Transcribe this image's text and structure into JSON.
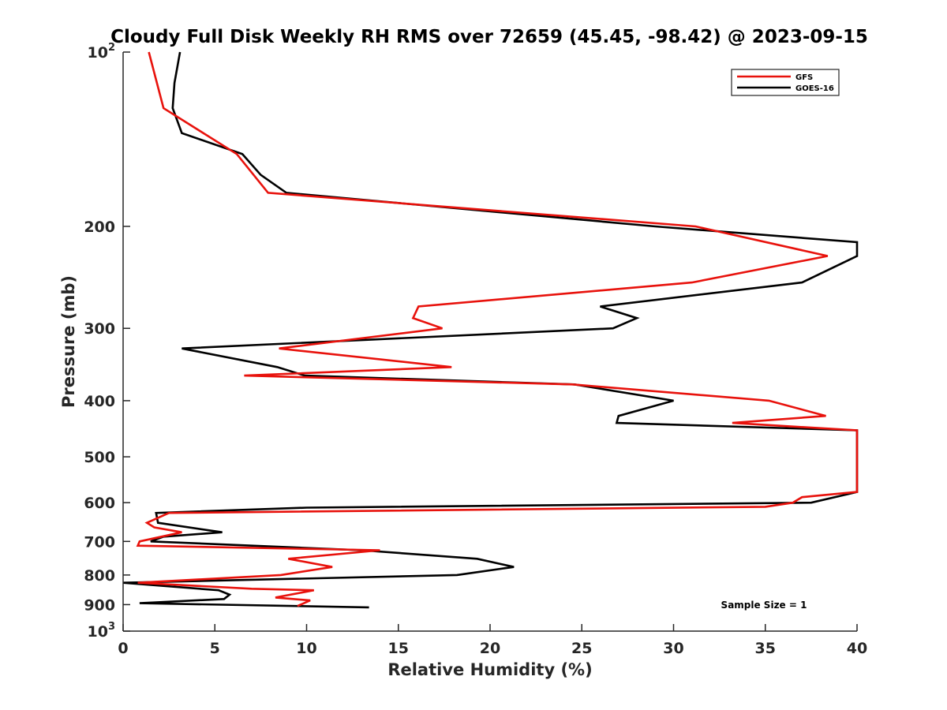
{
  "chart_data": {
    "type": "line",
    "title": "Cloudy Full Disk Weekly RH RMS over 72659 (45.45, -98.42) @ 2023-09-15",
    "xlabel": "Relative Humidity (%)",
    "ylabel": "Pressure (mb)",
    "xlim": [
      0,
      40
    ],
    "ylim": [
      100,
      1000
    ],
    "y_scale": "log",
    "y_reversed": true,
    "x_ticks": [
      "0",
      "5",
      "10",
      "15",
      "20",
      "25",
      "30",
      "35",
      "40"
    ],
    "y_ticks": [
      {
        "value": 100,
        "base": "10",
        "sup": "2"
      },
      {
        "value": 200,
        "base": "200",
        "sup": ""
      },
      {
        "value": 300,
        "base": "300",
        "sup": ""
      },
      {
        "value": 400,
        "base": "400",
        "sup": ""
      },
      {
        "value": 500,
        "base": "500",
        "sup": ""
      },
      {
        "value": 600,
        "base": "600",
        "sup": ""
      },
      {
        "value": 700,
        "base": "700",
        "sup": ""
      },
      {
        "value": 800,
        "base": "800",
        "sup": ""
      },
      {
        "value": 900,
        "base": "900",
        "sup": ""
      },
      {
        "value": 1000,
        "base": "10",
        "sup": "3"
      }
    ],
    "grid": false,
    "legend_position": "top-right",
    "annotation": "Sample Size = 1",
    "series": [
      {
        "name": "GFS",
        "color": "#e8120c",
        "points": [
          [
            1.4,
            100
          ],
          [
            2.2,
            125
          ],
          [
            6.2,
            150
          ],
          [
            7.9,
            175
          ],
          [
            31.2,
            200
          ],
          [
            38.4,
            225
          ],
          [
            31.0,
            250
          ],
          [
            16.1,
            275
          ],
          [
            15.8,
            288
          ],
          [
            17.4,
            300
          ],
          [
            8.5,
            325
          ],
          [
            17.9,
            350
          ],
          [
            6.6,
            362
          ],
          [
            24.5,
            375
          ],
          [
            35.2,
            400
          ],
          [
            38.3,
            425
          ],
          [
            33.2,
            437
          ],
          [
            40,
            450
          ],
          [
            40,
            575
          ],
          [
            37,
            587
          ],
          [
            36.5,
            600
          ],
          [
            35,
            610
          ],
          [
            2.5,
            625
          ],
          [
            1.3,
            650
          ],
          [
            1.7,
            662
          ],
          [
            3.2,
            675
          ],
          [
            0.9,
            700
          ],
          [
            0.8,
            712
          ],
          [
            14.0,
            725
          ],
          [
            9.0,
            750
          ],
          [
            11.4,
            775
          ],
          [
            8.6,
            800
          ],
          [
            0.8,
            825
          ],
          [
            7,
            845
          ],
          [
            10.4,
            850
          ],
          [
            8.3,
            875
          ],
          [
            10.2,
            885
          ],
          [
            9.5,
            905
          ]
        ]
      },
      {
        "name": "GOES-16",
        "color": "#000000",
        "points": [
          [
            3.1,
            100
          ],
          [
            2.8,
            113
          ],
          [
            2.7,
            125
          ],
          [
            3.2,
            138
          ],
          [
            6.5,
            150
          ],
          [
            7.5,
            163
          ],
          [
            8.9,
            175
          ],
          [
            29.0,
            200
          ],
          [
            40,
            213
          ],
          [
            40,
            225
          ],
          [
            37.0,
            250
          ],
          [
            26.0,
            275
          ],
          [
            28.0,
            288
          ],
          [
            26.7,
            300
          ],
          [
            3.2,
            325
          ],
          [
            8.4,
            350
          ],
          [
            9.9,
            362
          ],
          [
            24.6,
            375
          ],
          [
            30.0,
            400
          ],
          [
            27.0,
            425
          ],
          [
            26.9,
            437
          ],
          [
            40,
            450
          ],
          [
            40,
            575
          ],
          [
            39.5,
            580
          ],
          [
            37.5,
            600
          ],
          [
            10,
            612
          ],
          [
            1.8,
            625
          ],
          [
            1.9,
            650
          ],
          [
            5.4,
            675
          ],
          [
            2.2,
            687
          ],
          [
            1.5,
            700
          ],
          [
            13.0,
            725
          ],
          [
            19.3,
            750
          ],
          [
            21.3,
            775
          ],
          [
            18.2,
            800
          ],
          [
            0,
            825
          ],
          [
            5.2,
            850
          ],
          [
            5.8,
            865
          ],
          [
            5.5,
            880
          ],
          [
            0.9,
            895
          ],
          [
            13.4,
            910
          ]
        ]
      }
    ]
  }
}
